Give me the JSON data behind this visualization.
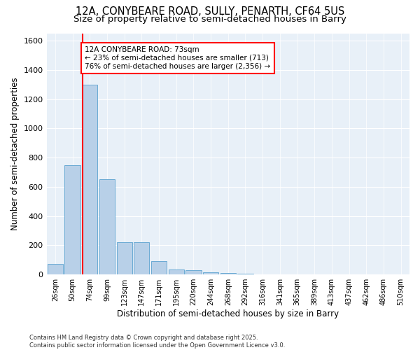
{
  "title_line1": "12A, CONYBEARE ROAD, SULLY, PENARTH, CF64 5US",
  "title_line2": "Size of property relative to semi-detached houses in Barry",
  "xlabel": "Distribution of semi-detached houses by size in Barry",
  "ylabel": "Number of semi-detached properties",
  "bar_labels": [
    "26sqm",
    "50sqm",
    "74sqm",
    "99sqm",
    "123sqm",
    "147sqm",
    "171sqm",
    "195sqm",
    "220sqm",
    "244sqm",
    "268sqm",
    "292sqm",
    "316sqm",
    "341sqm",
    "365sqm",
    "389sqm",
    "413sqm",
    "437sqm",
    "462sqm",
    "486sqm",
    "510sqm"
  ],
  "bar_values": [
    75,
    750,
    1300,
    650,
    220,
    220,
    90,
    35,
    30,
    15,
    10,
    4,
    2,
    1,
    0,
    0,
    0,
    0,
    0,
    0,
    0
  ],
  "bar_color": "#b8d0e8",
  "bar_edgecolor": "#6aaad4",
  "vline_color": "red",
  "vline_pos": 1.57,
  "annotation_title": "12A CONYBEARE ROAD: 73sqm",
  "annotation_line1": "← 23% of semi-detached houses are smaller (713)",
  "annotation_line2": "76% of semi-detached houses are larger (2,356) →",
  "ylim": [
    0,
    1650
  ],
  "yticks": [
    0,
    200,
    400,
    600,
    800,
    1000,
    1200,
    1400,
    1600
  ],
  "background_color": "#e8f0f8",
  "footer": "Contains HM Land Registry data © Crown copyright and database right 2025.\nContains public sector information licensed under the Open Government Licence v3.0.",
  "title_fontsize": 10.5,
  "subtitle_fontsize": 9.5,
  "ylabel_fontsize": 8.5,
  "xlabel_fontsize": 8.5,
  "ytick_fontsize": 8,
  "xtick_fontsize": 7,
  "annot_fontsize": 7.5,
  "footer_fontsize": 6
}
